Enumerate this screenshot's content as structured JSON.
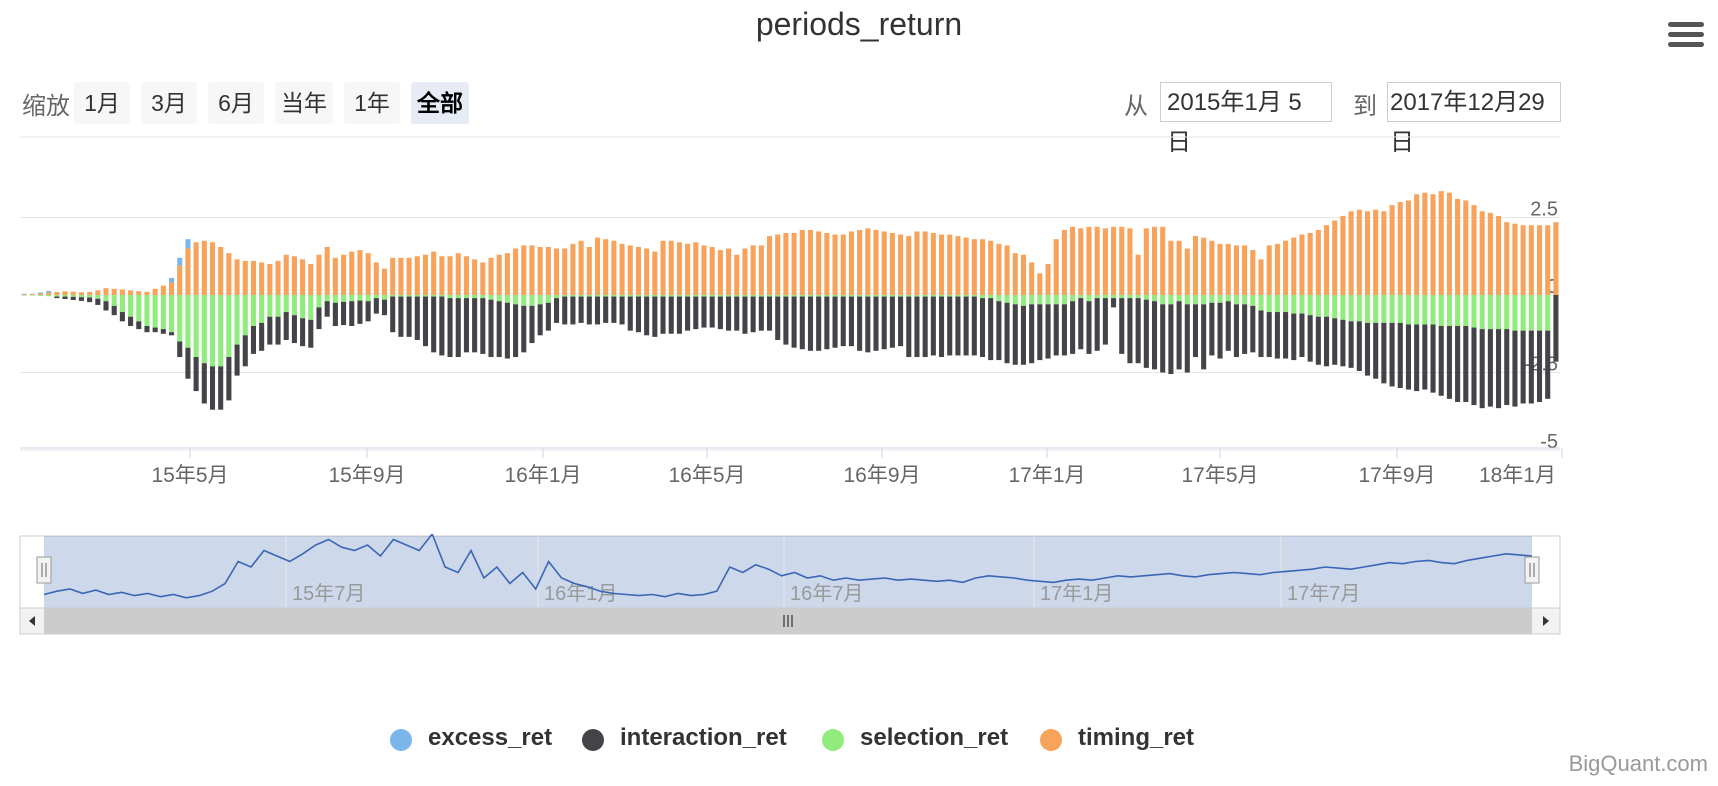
{
  "title": "periods_return",
  "rangeSelector": {
    "zoom_label": "缩放",
    "buttons": [
      {
        "label": "1月",
        "active": false
      },
      {
        "label": "3月",
        "active": false
      },
      {
        "label": "6月",
        "active": false
      },
      {
        "label": "当年",
        "active": false
      },
      {
        "label": "1年",
        "active": false
      },
      {
        "label": "全部",
        "active": true
      }
    ],
    "from_label": "从",
    "from_value": "2015年1月 5日",
    "to_label": "到",
    "to_value": "2017年12月29日"
  },
  "chart_data": {
    "type": "bar",
    "stacked": true,
    "x_start": "2015-01-05",
    "x_end": "2017-12-29",
    "y_ticks": [
      "2.5",
      "0",
      "-2.5",
      "-5"
    ],
    "ylim": [
      -5,
      2.5
    ],
    "x_ticks": [
      "15年5月",
      "15年9月",
      "16年1月",
      "16年5月",
      "16年9月",
      "17年1月",
      "17年5月",
      "17年9月",
      "18年1月"
    ],
    "navigator_ticks": [
      "15年7月",
      "16年1月",
      "16年7月",
      "17年1月",
      "17年7月"
    ],
    "series": [
      {
        "name": "excess_ret",
        "color": "#7cb5ec"
      },
      {
        "name": "interaction_ret",
        "color": "#434348"
      },
      {
        "name": "selection_ret",
        "color": "#90ed7d"
      },
      {
        "name": "timing_ret",
        "color": "#f7a35c"
      }
    ],
    "bars": {
      "timing_ret": [
        0.02,
        0.03,
        0.05,
        0.08,
        0.1,
        0.12,
        0.11,
        0.09,
        0.1,
        0.15,
        0.22,
        0.2,
        0.18,
        0.15,
        0.12,
        0.1,
        0.2,
        0.3,
        0.4,
        0.95,
        1.5,
        1.7,
        1.75,
        1.7,
        1.55,
        1.35,
        1.15,
        1.1,
        1.1,
        1.05,
        1.0,
        1.1,
        1.3,
        1.25,
        1.15,
        1.0,
        1.3,
        1.55,
        1.2,
        1.3,
        1.4,
        1.45,
        1.35,
        1.05,
        0.85,
        1.2,
        1.2,
        1.2,
        1.25,
        1.3,
        1.4,
        1.25,
        1.25,
        1.35,
        1.25,
        1.15,
        1.05,
        1.2,
        1.3,
        1.35,
        1.5,
        1.6,
        1.6,
        1.55,
        1.55,
        1.5,
        1.5,
        1.65,
        1.75,
        1.55,
        1.85,
        1.8,
        1.75,
        1.65,
        1.6,
        1.55,
        1.5,
        1.4,
        1.75,
        1.75,
        1.7,
        1.65,
        1.7,
        1.6,
        1.55,
        1.45,
        1.5,
        1.3,
        1.5,
        1.6,
        1.6,
        1.9,
        1.95,
        2.0,
        2.0,
        2.1,
        2.1,
        2.05,
        2.0,
        1.95,
        1.95,
        2.05,
        2.1,
        2.15,
        2.1,
        2.05,
        2.0,
        1.95,
        1.9,
        2.05,
        2.05,
        2.0,
        1.95,
        1.95,
        1.9,
        1.85,
        1.8,
        1.8,
        1.75,
        1.65,
        1.6,
        1.35,
        1.3,
        1.05,
        0.7,
        1.0,
        1.8,
        2.1,
        2.2,
        2.15,
        2.2,
        2.2,
        2.15,
        2.2,
        2.2,
        2.15,
        1.3,
        2.15,
        2.2,
        2.2,
        1.75,
        1.75,
        1.5,
        1.9,
        1.85,
        1.75,
        1.65,
        1.65,
        1.6,
        1.6,
        1.45,
        1.15,
        1.6,
        1.65,
        1.75,
        1.85,
        1.95,
        2.0,
        2.1,
        2.25,
        2.4,
        2.55,
        2.7,
        2.75,
        2.7,
        2.75,
        2.7,
        2.9,
        3.0,
        3.05,
        3.25,
        3.3,
        3.25,
        3.35,
        3.3,
        3.1,
        3.05,
        2.9,
        2.7,
        2.65,
        2.55,
        2.35,
        2.3,
        2.25,
        2.25,
        2.25,
        2.25,
        2.35
      ],
      "selection_ret": [
        -0.02,
        -0.02,
        -0.03,
        -0.04,
        -0.05,
        -0.05,
        -0.06,
        -0.07,
        -0.08,
        -0.12,
        -0.2,
        -0.35,
        -0.55,
        -0.7,
        -0.85,
        -1.0,
        -1.05,
        -1.1,
        -1.2,
        -1.5,
        -1.7,
        -2.0,
        -2.2,
        -2.3,
        -2.3,
        -2.0,
        -1.6,
        -1.3,
        -1.0,
        -0.9,
        -0.7,
        -0.7,
        -0.55,
        -0.65,
        -0.75,
        -0.8,
        -0.4,
        -0.2,
        -0.25,
        -0.22,
        -0.2,
        -0.18,
        -0.2,
        -0.1,
        -0.15,
        -0.05,
        -0.05,
        -0.05,
        -0.05,
        -0.05,
        -0.05,
        -0.05,
        -0.1,
        -0.1,
        -0.1,
        -0.1,
        -0.1,
        -0.15,
        -0.2,
        -0.25,
        -0.3,
        -0.35,
        -0.35,
        -0.3,
        -0.25,
        -0.1,
        -0.05,
        -0.05,
        -0.05,
        -0.05,
        -0.05,
        -0.05,
        -0.05,
        -0.05,
        -0.05,
        -0.05,
        -0.05,
        -0.05,
        -0.05,
        -0.05,
        -0.05,
        -0.05,
        -0.05,
        -0.05,
        -0.05,
        -0.05,
        -0.05,
        -0.05,
        -0.05,
        -0.05,
        -0.05,
        -0.05,
        -0.05,
        -0.05,
        -0.05,
        -0.05,
        -0.05,
        -0.05,
        -0.05,
        -0.05,
        -0.05,
        -0.05,
        -0.05,
        -0.05,
        -0.05,
        -0.05,
        -0.05,
        -0.05,
        -0.05,
        -0.05,
        -0.05,
        -0.05,
        -0.05,
        -0.05,
        -0.05,
        -0.05,
        -0.05,
        -0.1,
        -0.1,
        -0.2,
        -0.25,
        -0.3,
        -0.35,
        -0.3,
        -0.3,
        -0.3,
        -0.3,
        -0.3,
        -0.2,
        -0.1,
        -0.2,
        -0.1,
        -0.1,
        -0.1,
        -0.1,
        -0.1,
        -0.1,
        -0.15,
        -0.2,
        -0.3,
        -0.3,
        -0.2,
        -0.3,
        -0.3,
        -0.3,
        -0.25,
        -0.25,
        -0.2,
        -0.3,
        -0.3,
        -0.35,
        -0.5,
        -0.55,
        -0.55,
        -0.55,
        -0.6,
        -0.6,
        -0.65,
        -0.7,
        -0.7,
        -0.75,
        -0.8,
        -0.85,
        -0.85,
        -0.9,
        -0.9,
        -0.9,
        -0.9,
        -0.9,
        -0.95,
        -0.95,
        -0.95,
        -0.95,
        -1.0,
        -1.0,
        -1.0,
        -1.0,
        -1.05,
        -1.1,
        -1.1,
        -1.1,
        -1.1,
        -1.15,
        -1.15,
        -1.15,
        -1.15,
        -1.15
      ],
      "interaction_ret": [
        0.0,
        0.0,
        0.0,
        0.0,
        -0.05,
        -0.08,
        -0.1,
        -0.12,
        -0.15,
        -0.2,
        -0.3,
        -0.3,
        -0.3,
        -0.3,
        -0.25,
        -0.2,
        -0.15,
        -0.15,
        -0.1,
        -0.5,
        -1.0,
        -1.1,
        -1.3,
        -1.4,
        -1.4,
        -1.4,
        -1.0,
        -1.0,
        -0.9,
        -0.9,
        -0.9,
        -0.9,
        -0.9,
        -0.9,
        -0.9,
        -0.9,
        -0.7,
        -0.5,
        -0.75,
        -0.75,
        -0.8,
        -0.75,
        -0.65,
        -0.5,
        -0.5,
        -1.15,
        -1.3,
        -1.3,
        -1.4,
        -1.6,
        -1.8,
        -1.9,
        -1.9,
        -1.9,
        -1.75,
        -1.75,
        -1.8,
        -1.85,
        -1.8,
        -1.8,
        -1.7,
        -1.5,
        -1.2,
        -1.0,
        -0.9,
        -0.8,
        -0.9,
        -0.9,
        -0.85,
        -0.9,
        -0.9,
        -0.85,
        -0.85,
        -0.9,
        -1.1,
        -1.15,
        -1.25,
        -1.3,
        -1.2,
        -1.2,
        -1.2,
        -1.1,
        -1.05,
        -1.0,
        -1.0,
        -1.05,
        -1.1,
        -1.1,
        -1.2,
        -1.15,
        -1.1,
        -1.1,
        -1.4,
        -1.55,
        -1.65,
        -1.7,
        -1.75,
        -1.75,
        -1.7,
        -1.65,
        -1.6,
        -1.6,
        -1.75,
        -1.8,
        -1.75,
        -1.7,
        -1.65,
        -1.6,
        -1.95,
        -1.95,
        -1.95,
        -1.9,
        -1.95,
        -1.9,
        -1.9,
        -1.9,
        -1.9,
        -1.9,
        -2.0,
        -1.9,
        -1.95,
        -1.95,
        -1.9,
        -1.9,
        -1.8,
        -1.75,
        -1.65,
        -1.65,
        -1.7,
        -1.65,
        -1.7,
        -1.7,
        -1.5,
        -0.3,
        -1.8,
        -2.1,
        -2.1,
        -2.2,
        -2.2,
        -2.2,
        -2.25,
        -2.2,
        -2.2,
        -1.7,
        -2.1,
        -1.7,
        -1.8,
        -1.6,
        -1.7,
        -1.6,
        -1.5,
        -1.5,
        -1.45,
        -1.5,
        -1.5,
        -1.5,
        -1.4,
        -1.5,
        -1.55,
        -1.6,
        -1.5,
        -1.5,
        -1.5,
        -1.6,
        -1.7,
        -1.8,
        -1.95,
        -2.05,
        -2.1,
        -2.1,
        -2.15,
        -2.1,
        -2.2,
        -2.25,
        -2.35,
        -2.45,
        -2.45,
        -2.5,
        -2.55,
        -2.5,
        -2.55,
        -2.45,
        -2.45,
        -2.35,
        -2.35,
        -2.3,
        -2.2,
        -2.15,
        -2.0,
        -1.95,
        -1.65,
        -1.75,
        -1.65,
        -1.65,
        -1.7
      ],
      "excess_ret": [
        0.02,
        0.01,
        0.03,
        0.05,
        0.0,
        0.0,
        0.0,
        0.0,
        0.0,
        0.0,
        0.0,
        0.0,
        0.0,
        0.0,
        0.0,
        0.0,
        0.0,
        0.0,
        0.15,
        0.25,
        0.3,
        0.0,
        0.0,
        0.0,
        0.0,
        0.0,
        0.0,
        0.0,
        0.0,
        0.0,
        0.0,
        0.0,
        0.0,
        0.0,
        0.0,
        0.0,
        0.0,
        0.0,
        0.0,
        0.0,
        0.0,
        0.0,
        0.0,
        0.0,
        0.0,
        0.0,
        0.0,
        0.0,
        0.0,
        0.0,
        0.0,
        0.0,
        0.0,
        0.0,
        0.0,
        0.0,
        0.0,
        0.0,
        0.0,
        0.0,
        0.0,
        0.0,
        0.0,
        0.0,
        0.0,
        0.0,
        0.0,
        0.0,
        0.0,
        0.0,
        0.0,
        0.0,
        0.0,
        0.0,
        0.0,
        0.0,
        0.0,
        0.0,
        0.0,
        0.0,
        0.0,
        0.0,
        0.0,
        0.0,
        0.0,
        0.0,
        0.0,
        0.0,
        0.0,
        0.0,
        0.0,
        0.0,
        0.0,
        0.0,
        0.0,
        0.0,
        0.0,
        0.0,
        0.0,
        0.0,
        0.0,
        0.0,
        0.0,
        0.0,
        0.0,
        0.0,
        0.0,
        0.0,
        0.0,
        0.0,
        0.0,
        0.0,
        0.0,
        0.0,
        0.0,
        0.0,
        0.0,
        0.0,
        0.0,
        0.0,
        0.0,
        0.0,
        0.0,
        0.0,
        0.0,
        0.0,
        0.0,
        0.0,
        0.0,
        0.0,
        0.0,
        0.0,
        0.0,
        0.0,
        0.0,
        0.0,
        0.0,
        0.0,
        0.0,
        0.0,
        0.0,
        0.0,
        0.0,
        0.0,
        0.0,
        0.0,
        0.0,
        0.0,
        0.0,
        0.0,
        0.0,
        0.0,
        0.0,
        0.0,
        0.0,
        0.0,
        0.0,
        0.0,
        0.0,
        0.0,
        0.0,
        0.0,
        0.0,
        0.0,
        0.0,
        0.0,
        0.0,
        0.0,
        0.0,
        0.0,
        0.0,
        0.0,
        0.0,
        0.0,
        0.0,
        0.0,
        0.0,
        0.0,
        0.0,
        0.0,
        0.0,
        0.0,
        0.0,
        0.0,
        0.0,
        0.0,
        0.0
      ]
    },
    "navigator_line": [
      0.05,
      0.08,
      0.1,
      0.06,
      0.09,
      0.05,
      0.07,
      0.04,
      0.06,
      0.03,
      0.05,
      0.02,
      0.04,
      0.08,
      0.15,
      0.35,
      0.3,
      0.45,
      0.4,
      0.35,
      0.42,
      0.5,
      0.55,
      0.48,
      0.45,
      0.5,
      0.4,
      0.55,
      0.5,
      0.45,
      0.6,
      0.3,
      0.25,
      0.45,
      0.2,
      0.3,
      0.15,
      0.25,
      0.1,
      0.35,
      0.2,
      0.15,
      0.12,
      0.08,
      0.06,
      0.05,
      0.04,
      0.05,
      0.03,
      0.06,
      0.04,
      0.05,
      0.08,
      0.3,
      0.25,
      0.32,
      0.28,
      0.22,
      0.25,
      0.2,
      0.22,
      0.18,
      0.2,
      0.18,
      0.19,
      0.2,
      0.18,
      0.19,
      0.18,
      0.17,
      0.18,
      0.16,
      0.2,
      0.22,
      0.21,
      0.2,
      0.18,
      0.17,
      0.16,
      0.18,
      0.19,
      0.18,
      0.2,
      0.22,
      0.21,
      0.22,
      0.23,
      0.24,
      0.22,
      0.21,
      0.23,
      0.24,
      0.25,
      0.24,
      0.23,
      0.25,
      0.26,
      0.27,
      0.28,
      0.3,
      0.29,
      0.28,
      0.3,
      0.32,
      0.34,
      0.33,
      0.35,
      0.36,
      0.34,
      0.33,
      0.36,
      0.38,
      0.4,
      0.42,
      0.41,
      0.4
    ]
  },
  "legend": [
    "excess_ret",
    "interaction_ret",
    "selection_ret",
    "timing_ret"
  ],
  "credit": "BigQuant.com"
}
